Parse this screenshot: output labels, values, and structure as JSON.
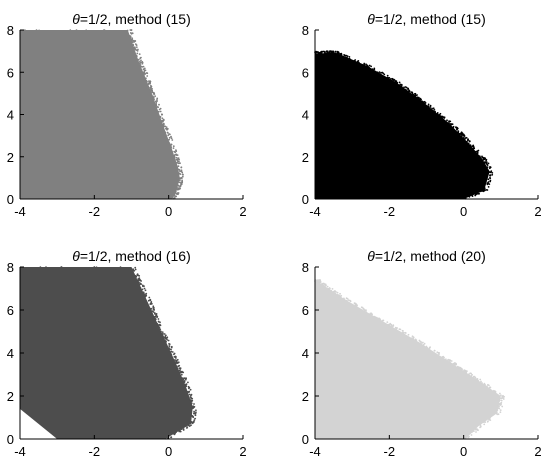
{
  "chart_data": [
    {
      "type": "scatter",
      "title_prefix": "θ",
      "title_rest": "=1/2, method (15)",
      "xlabel": "",
      "ylabel": "",
      "xlim": [
        -4,
        2
      ],
      "ylim": [
        0,
        8
      ],
      "xticks": [
        -4,
        -2,
        0,
        2
      ],
      "yticks": [
        0,
        2,
        4,
        6,
        8
      ],
      "grid": false,
      "color": "#808080",
      "region": {
        "left_x": -4.0,
        "top_y": 8.0,
        "top_right_x": -1.1,
        "boundary": [
          [
            -1.1,
            8.0
          ],
          [
            -0.8,
            6.5
          ],
          [
            -0.45,
            5.0
          ],
          [
            -0.15,
            3.5
          ],
          [
            0.1,
            2.3
          ],
          [
            0.25,
            1.5
          ],
          [
            0.3,
            1.0
          ],
          [
            0.2,
            0.3
          ],
          [
            0.1,
            0.0
          ]
        ]
      }
    },
    {
      "type": "scatter",
      "title_prefix": "θ",
      "title_rest": "=1/2, method (15)",
      "xlabel": "",
      "ylabel": "",
      "xlim": [
        -4,
        2
      ],
      "ylim": [
        0,
        8
      ],
      "xticks": [
        -4,
        -2,
        0,
        2
      ],
      "yticks": [
        0,
        2,
        4,
        6,
        8
      ],
      "grid": false,
      "color": "#000000",
      "region": {
        "left_x": -4.0,
        "top_y": 6.9,
        "top_right_x": -3.4,
        "boundary": [
          [
            -3.4,
            6.9
          ],
          [
            -2.6,
            6.3
          ],
          [
            -1.8,
            5.5
          ],
          [
            -1.1,
            4.6
          ],
          [
            -0.4,
            3.6
          ],
          [
            0.1,
            2.7
          ],
          [
            0.5,
            1.9
          ],
          [
            0.7,
            1.3
          ],
          [
            0.55,
            0.4
          ],
          [
            0.0,
            0.0
          ]
        ]
      }
    },
    {
      "type": "scatter",
      "title_prefix": "θ",
      "title_rest": "=1/2, method (16)",
      "xlabel": "",
      "ylabel": "",
      "xlim": [
        -4,
        2
      ],
      "ylim": [
        0,
        8
      ],
      "xticks": [
        -4,
        -2,
        0,
        2
      ],
      "yticks": [
        0,
        2,
        4,
        6,
        8
      ],
      "grid": false,
      "color": "#4d4d4d",
      "region": {
        "left_x": -4.0,
        "left_bottom_y": 1.4,
        "bottom_left_x": -3.0,
        "top_y": 8.0,
        "top_right_x": -1.0,
        "boundary": [
          [
            -1.0,
            8.0
          ],
          [
            -0.6,
            6.5
          ],
          [
            -0.2,
            5.0
          ],
          [
            0.2,
            3.5
          ],
          [
            0.45,
            2.5
          ],
          [
            0.65,
            1.5
          ],
          [
            0.6,
            0.7
          ],
          [
            0.2,
            0.3
          ],
          [
            -0.1,
            0.0
          ]
        ]
      }
    },
    {
      "type": "scatter",
      "title_prefix": "θ",
      "title_rest": "=1/2, method (20)",
      "xlabel": "",
      "ylabel": "",
      "xlim": [
        -4,
        2
      ],
      "ylim": [
        0,
        8
      ],
      "xticks": [
        -4,
        -2,
        0,
        2
      ],
      "yticks": [
        0,
        2,
        4,
        6,
        8
      ],
      "grid": false,
      "color": "#d3d3d3",
      "region": {
        "left_x": -4.0,
        "top_y": 7.3,
        "top_right_x": -3.9,
        "boundary": [
          [
            -3.9,
            7.3
          ],
          [
            -3.2,
            6.5
          ],
          [
            -2.2,
            5.5
          ],
          [
            -1.2,
            4.5
          ],
          [
            -0.3,
            3.5
          ],
          [
            0.5,
            2.6
          ],
          [
            1.0,
            2.0
          ],
          [
            0.9,
            1.2
          ],
          [
            0.4,
            0.6
          ],
          [
            0.05,
            0.0
          ]
        ]
      }
    }
  ]
}
